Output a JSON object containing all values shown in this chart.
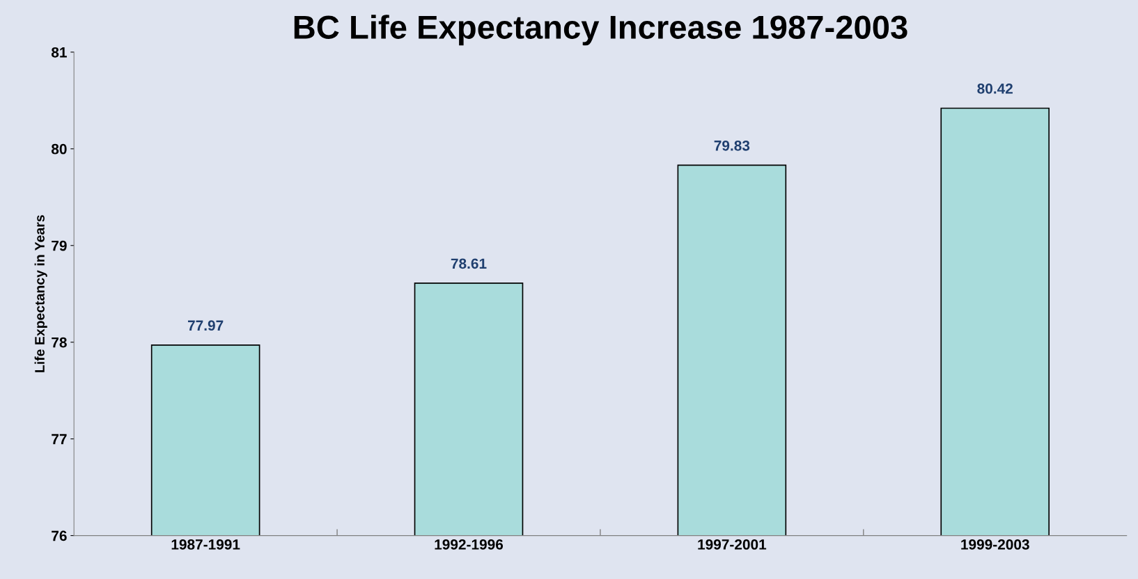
{
  "chart_data": {
    "type": "bar",
    "title": "BC Life Expectancy Increase 1987-2003",
    "ylabel": "Life Expectancy in Years",
    "categories": [
      "1987-1991",
      "1992-1996",
      "1997-2001",
      "1999-2003"
    ],
    "values": [
      77.97,
      78.61,
      79.83,
      80.42
    ],
    "color": "#a9dcdc",
    "ylim": [
      76,
      81
    ],
    "yticks": [
      76,
      77,
      78,
      79,
      80,
      81
    ],
    "data_labels": true,
    "grid": false,
    "legend": false
  }
}
